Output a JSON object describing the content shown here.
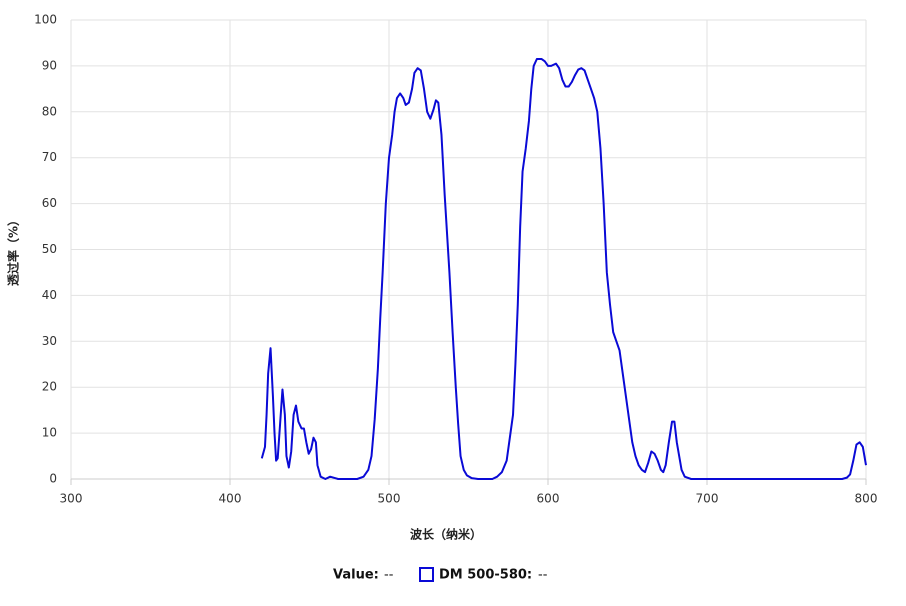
{
  "chart_data": {
    "type": "line",
    "x_label": "波长（纳米）",
    "y_label": "透过率（%）",
    "xlim": [
      300,
      800
    ],
    "ylim": [
      0,
      100
    ],
    "xticks": [
      300,
      400,
      500,
      600,
      700,
      800
    ],
    "yticks": [
      0,
      10,
      20,
      30,
      40,
      50,
      60,
      70,
      80,
      90,
      100
    ],
    "grid": true,
    "legend": {
      "value_label": "Value:",
      "value_text": "--",
      "series_readout": "--"
    },
    "x": [
      420,
      422,
      423,
      424,
      425.5,
      427,
      428,
      429,
      430,
      431.5,
      433,
      434.5,
      435.5,
      437,
      438.5,
      440,
      441.5,
      443,
      445,
      446.5,
      448,
      449.5,
      451,
      452.5,
      454,
      455,
      457,
      460,
      463,
      466,
      468,
      480,
      484,
      487,
      489,
      491,
      493,
      494.5,
      496,
      498,
      500,
      502,
      503.5,
      505,
      507,
      509,
      510.5,
      512.5,
      514.5,
      516,
      518,
      520,
      522,
      524,
      526,
      528,
      529.5,
      531,
      533,
      535,
      538,
      540,
      542,
      543.5,
      545,
      547,
      549,
      552,
      556,
      565,
      568,
      571,
      574,
      576,
      578,
      579.5,
      581,
      582.5,
      584,
      586,
      588,
      589.5,
      591,
      593,
      596,
      598,
      600,
      602,
      605,
      607,
      609,
      611,
      613,
      615,
      617,
      619,
      621,
      623,
      625,
      627,
      629,
      631,
      633,
      635,
      637,
      639,
      641,
      643,
      645,
      647,
      649,
      651,
      653,
      655,
      657,
      659,
      661,
      663,
      665,
      667,
      669,
      671,
      672.5,
      674,
      676,
      678,
      679.5,
      681,
      683,
      684,
      686,
      690,
      700,
      785,
      788,
      790,
      792,
      794,
      796,
      798,
      800
    ],
    "series": [
      {
        "name": "DM 500-580:",
        "color": "#0a0ad6",
        "values": [
          4.5,
          7,
          14,
          23,
          28.5,
          18,
          10,
          4,
          4.5,
          12,
          19.5,
          14,
          5,
          2.5,
          6,
          14,
          16,
          12.5,
          11,
          11,
          8,
          5.5,
          6.5,
          9,
          8,
          3,
          0.5,
          0,
          0.5,
          0.2,
          0,
          0,
          0.5,
          2,
          5,
          13,
          24,
          35,
          45,
          60,
          70,
          75,
          80,
          83,
          84,
          83,
          81.5,
          82,
          85,
          88.5,
          89.5,
          89,
          85,
          80,
          78.5,
          80.5,
          82.5,
          82,
          75,
          62,
          45,
          32,
          20,
          12,
          5,
          2,
          0.8,
          0.2,
          0,
          0,
          0.5,
          1.5,
          4,
          9,
          14,
          25,
          38,
          55,
          67,
          72,
          78,
          85,
          90,
          91.5,
          91.5,
          91,
          90,
          90,
          90.5,
          89.5,
          87,
          85.5,
          85.5,
          86.5,
          88,
          89.2,
          89.5,
          89,
          87,
          85,
          83,
          80,
          72,
          60,
          45,
          38,
          32,
          30,
          28,
          23,
          18,
          13,
          8,
          5,
          3,
          2,
          1.5,
          3.5,
          6,
          5.5,
          4,
          2,
          1.5,
          3,
          8,
          12.5,
          12.5,
          8,
          4,
          2,
          0.5,
          0,
          0,
          0,
          0.3,
          1,
          4,
          7.5,
          8,
          7,
          3
        ]
      }
    ]
  }
}
